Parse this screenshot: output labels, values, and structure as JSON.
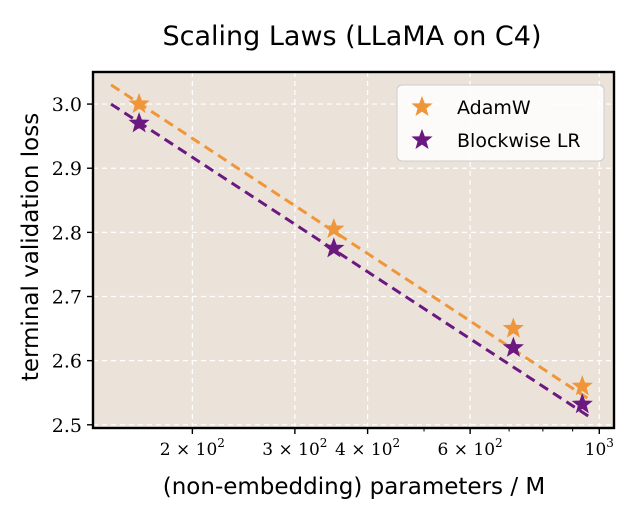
{
  "chart_data": {
    "type": "line",
    "title": "Scaling Laws (LLaMA on C4)",
    "xlabel": "(non-embedding) parameters / M",
    "ylabel": "terminal validation loss",
    "xscale": "log",
    "xlim": [
      135,
      1060
    ],
    "ylim": [
      2.495,
      3.05
    ],
    "x_ticks": [
      {
        "value": 200,
        "label": "2 × 10",
        "sup": "2"
      },
      {
        "value": 300,
        "label": "3 × 10",
        "sup": "2"
      },
      {
        "value": 400,
        "label": "4 × 10",
        "sup": "2"
      },
      {
        "value": 600,
        "label": "6 × 10",
        "sup": "2"
      },
      {
        "value": 1000,
        "label": "10",
        "sup": "3"
      }
    ],
    "y_ticks": [
      {
        "value": 2.5,
        "label": "2.5"
      },
      {
        "value": 2.6,
        "label": "2.6"
      },
      {
        "value": 2.7,
        "label": "2.7"
      },
      {
        "value": 2.8,
        "label": "2.8"
      },
      {
        "value": 2.9,
        "label": "2.9"
      },
      {
        "value": 3.0,
        "label": "3.0"
      }
    ],
    "grid": true,
    "legend_position": "top-right",
    "background": "#ebe3da",
    "series": [
      {
        "name": "AdamW",
        "color": "#f0963a",
        "marker": "star",
        "x": [
          162,
          350,
          712,
          935
        ],
        "y": [
          3.0,
          2.805,
          2.65,
          2.56
        ],
        "fit": {
          "x": [
            145,
            960
          ],
          "y": [
            3.03,
            2.54
          ]
        }
      },
      {
        "name": "Blockwise LR",
        "color": "#6b1980",
        "marker": "star",
        "x": [
          162,
          350,
          712,
          935
        ],
        "y": [
          2.97,
          2.775,
          2.62,
          2.532
        ],
        "fit": {
          "x": [
            145,
            960
          ],
          "y": [
            3.0,
            2.513
          ]
        }
      }
    ]
  }
}
